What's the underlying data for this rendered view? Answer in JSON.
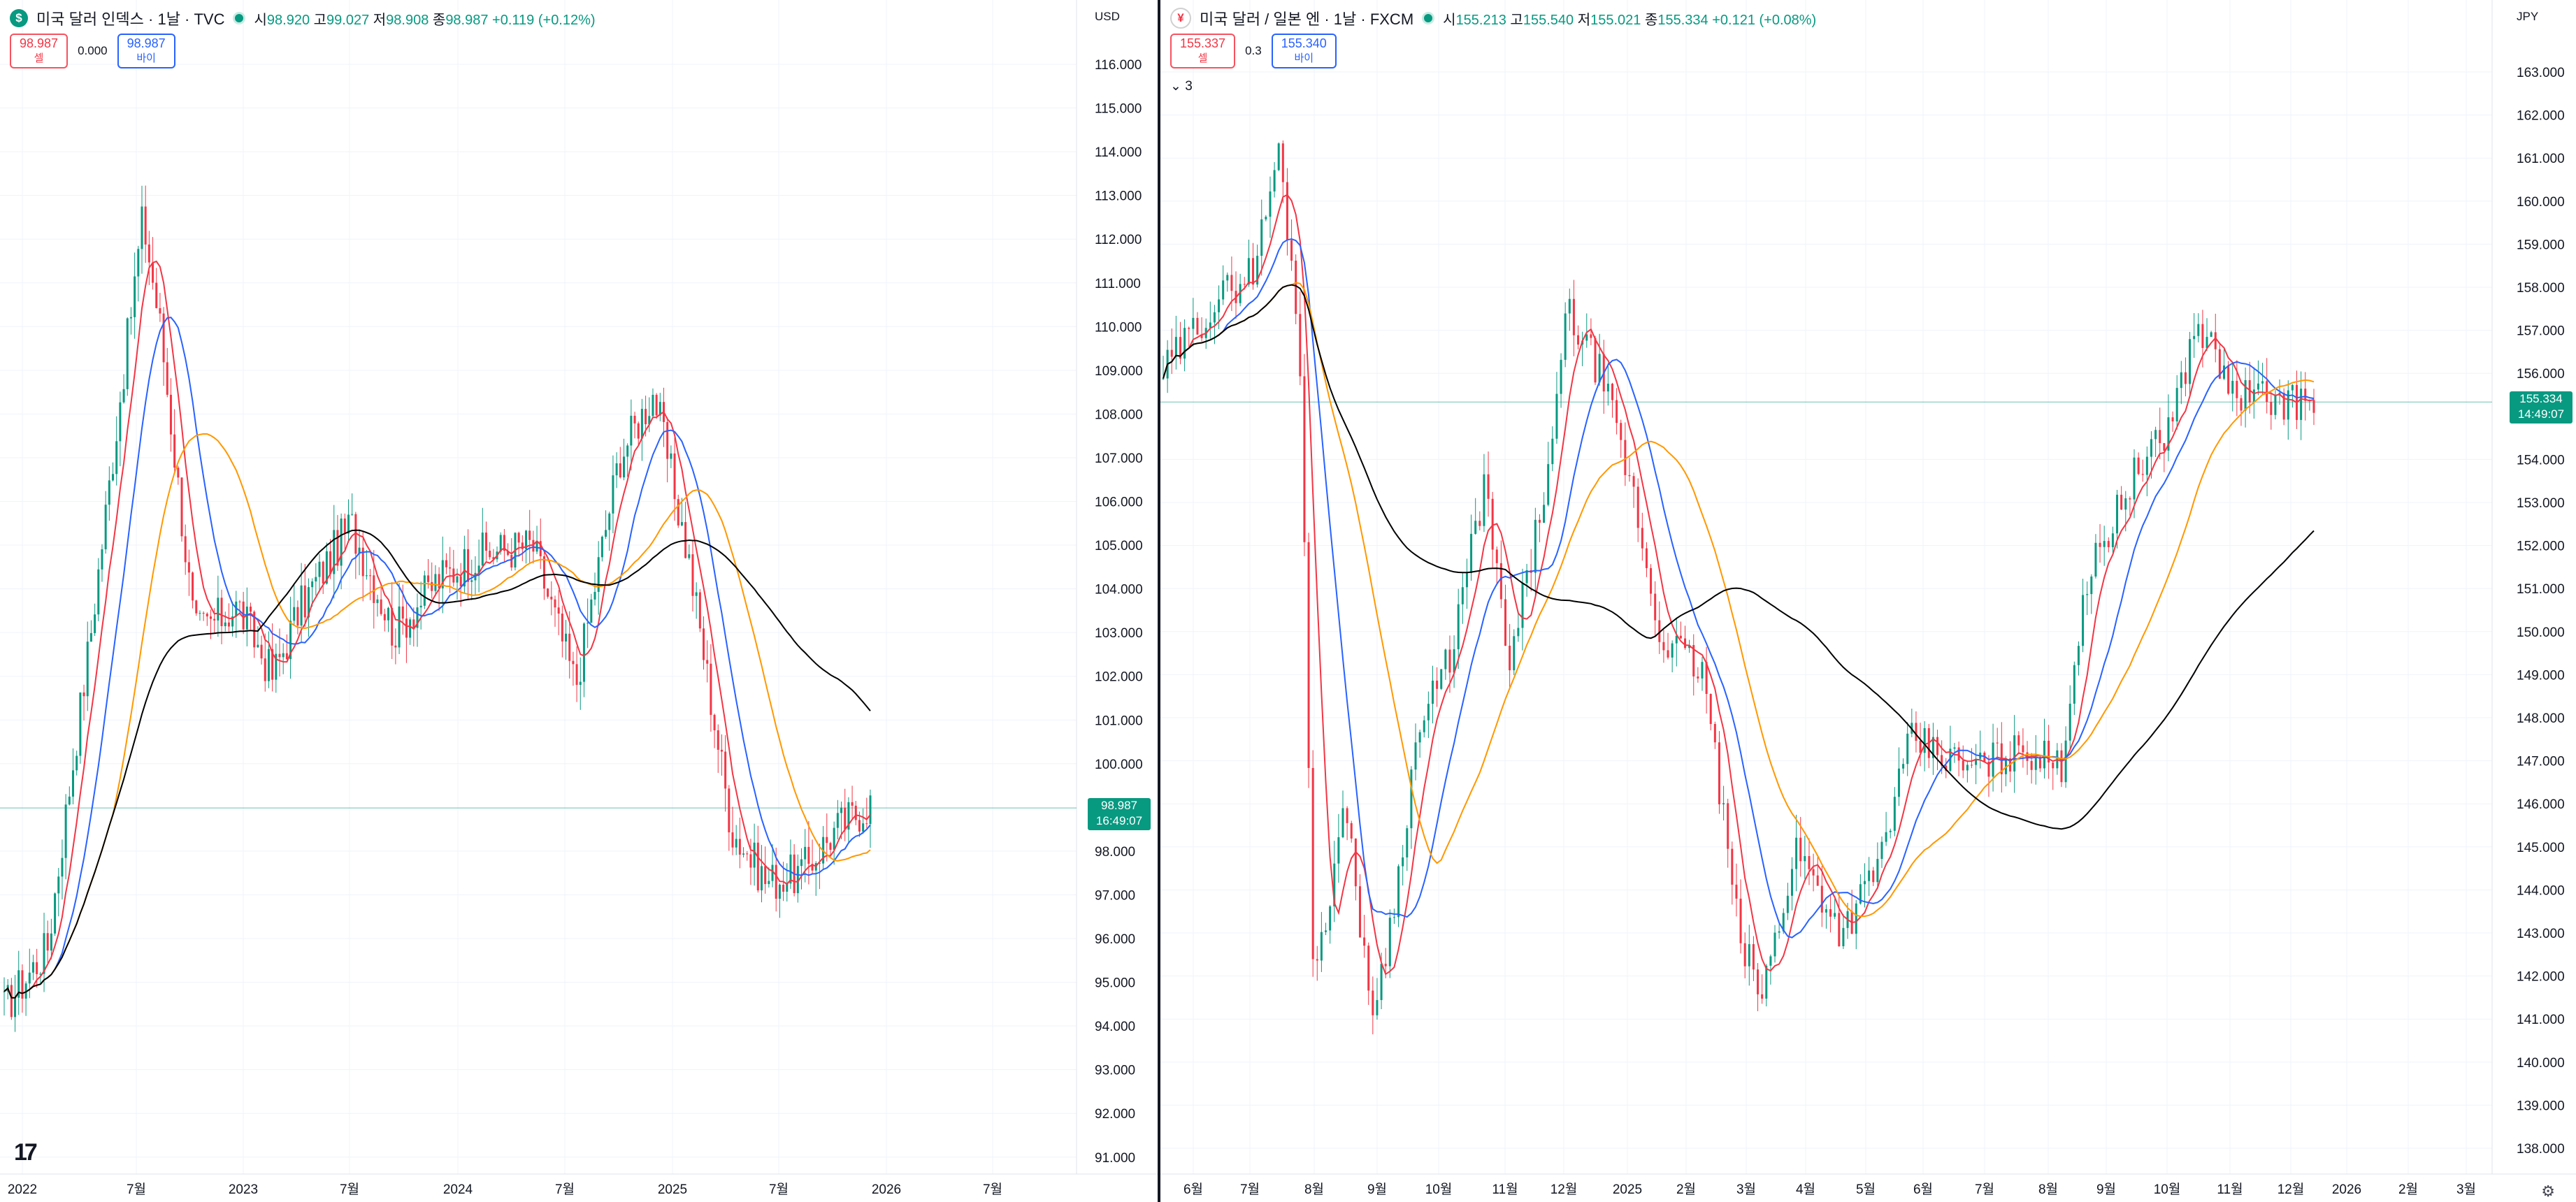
{
  "left_chart": {
    "symbol_icon": "$",
    "title": "미국 달러 인덱스 · 1날 · TVC",
    "ohlc": {
      "o_label": "시",
      "o": "98.920",
      "h_label": "고",
      "h": "99.027",
      "l_label": "저",
      "l": "98.908",
      "c_label": "종",
      "c": "98.987",
      "change": "+0.119 (+0.12%)"
    },
    "sell": {
      "price": "98.987",
      "label": "셀"
    },
    "buy": {
      "price": "98.987",
      "label": "바이"
    },
    "spread": "0.000",
    "currency": "USD",
    "last_price": "98.987",
    "countdown": "16:49:07",
    "price_ticks": [
      "116.000",
      "115.000",
      "114.000",
      "113.000",
      "112.000",
      "111.000",
      "110.000",
      "109.000",
      "108.000",
      "107.000",
      "106.000",
      "105.000",
      "104.000",
      "103.000",
      "102.000",
      "101.000",
      "100.000",
      "98.000",
      "97.000",
      "96.000",
      "95.000",
      "94.000",
      "93.000",
      "92.000",
      "91.000"
    ],
    "date_ticks": [
      "2022",
      "7월",
      "2023",
      "7월",
      "2024",
      "7월",
      "2025",
      "7월",
      "2026",
      "7월"
    ],
    "logo": "17"
  },
  "right_chart": {
    "symbol_icon": "¥",
    "title": "미국 달러 / 일본 엔 · 1날 · FXCM",
    "ohlc": {
      "o_label": "시",
      "o": "155.213",
      "h_label": "고",
      "h": "155.540",
      "l_label": "저",
      "l": "155.021",
      "c_label": "종",
      "c": "155.334",
      "change": "+0.121 (+0.08%)"
    },
    "sell": {
      "price": "155.337",
      "label": "셀"
    },
    "buy": {
      "price": "155.340",
      "label": "바이"
    },
    "spread": "0.3",
    "indicator_toggle": "3",
    "currency": "JPY",
    "last_price": "155.334",
    "countdown": "14:49:07",
    "price_ticks": [
      "163.000",
      "162.000",
      "161.000",
      "160.000",
      "159.000",
      "158.000",
      "157.000",
      "156.000",
      "154.000",
      "153.000",
      "152.000",
      "151.000",
      "150.000",
      "149.000",
      "148.000",
      "147.000",
      "146.000",
      "145.000",
      "144.000",
      "143.000",
      "142.000",
      "141.000",
      "140.000",
      "139.000",
      "138.000"
    ],
    "date_ticks": [
      "6월",
      "7월",
      "8월",
      "9월",
      "10월",
      "11월",
      "12월",
      "2025",
      "2월",
      "3월",
      "4월",
      "5월",
      "6월",
      "7월",
      "8월",
      "9월",
      "10월",
      "11월",
      "12월",
      "2026",
      "2월",
      "3월"
    ]
  },
  "colors": {
    "up": "#089981",
    "down": "#f23645",
    "ma_red": "#f23645",
    "ma_blue": "#2962ff",
    "ma_orange": "#ff9800",
    "ma_black": "#000000",
    "price_line": "#089981"
  },
  "icons": {
    "left_symbol": "dollar-icon",
    "right_symbol": "usd-jpy-flag-icon",
    "settings": "gear-icon",
    "toggle": "chevron-down-icon",
    "logo": "tradingview-logo"
  }
}
